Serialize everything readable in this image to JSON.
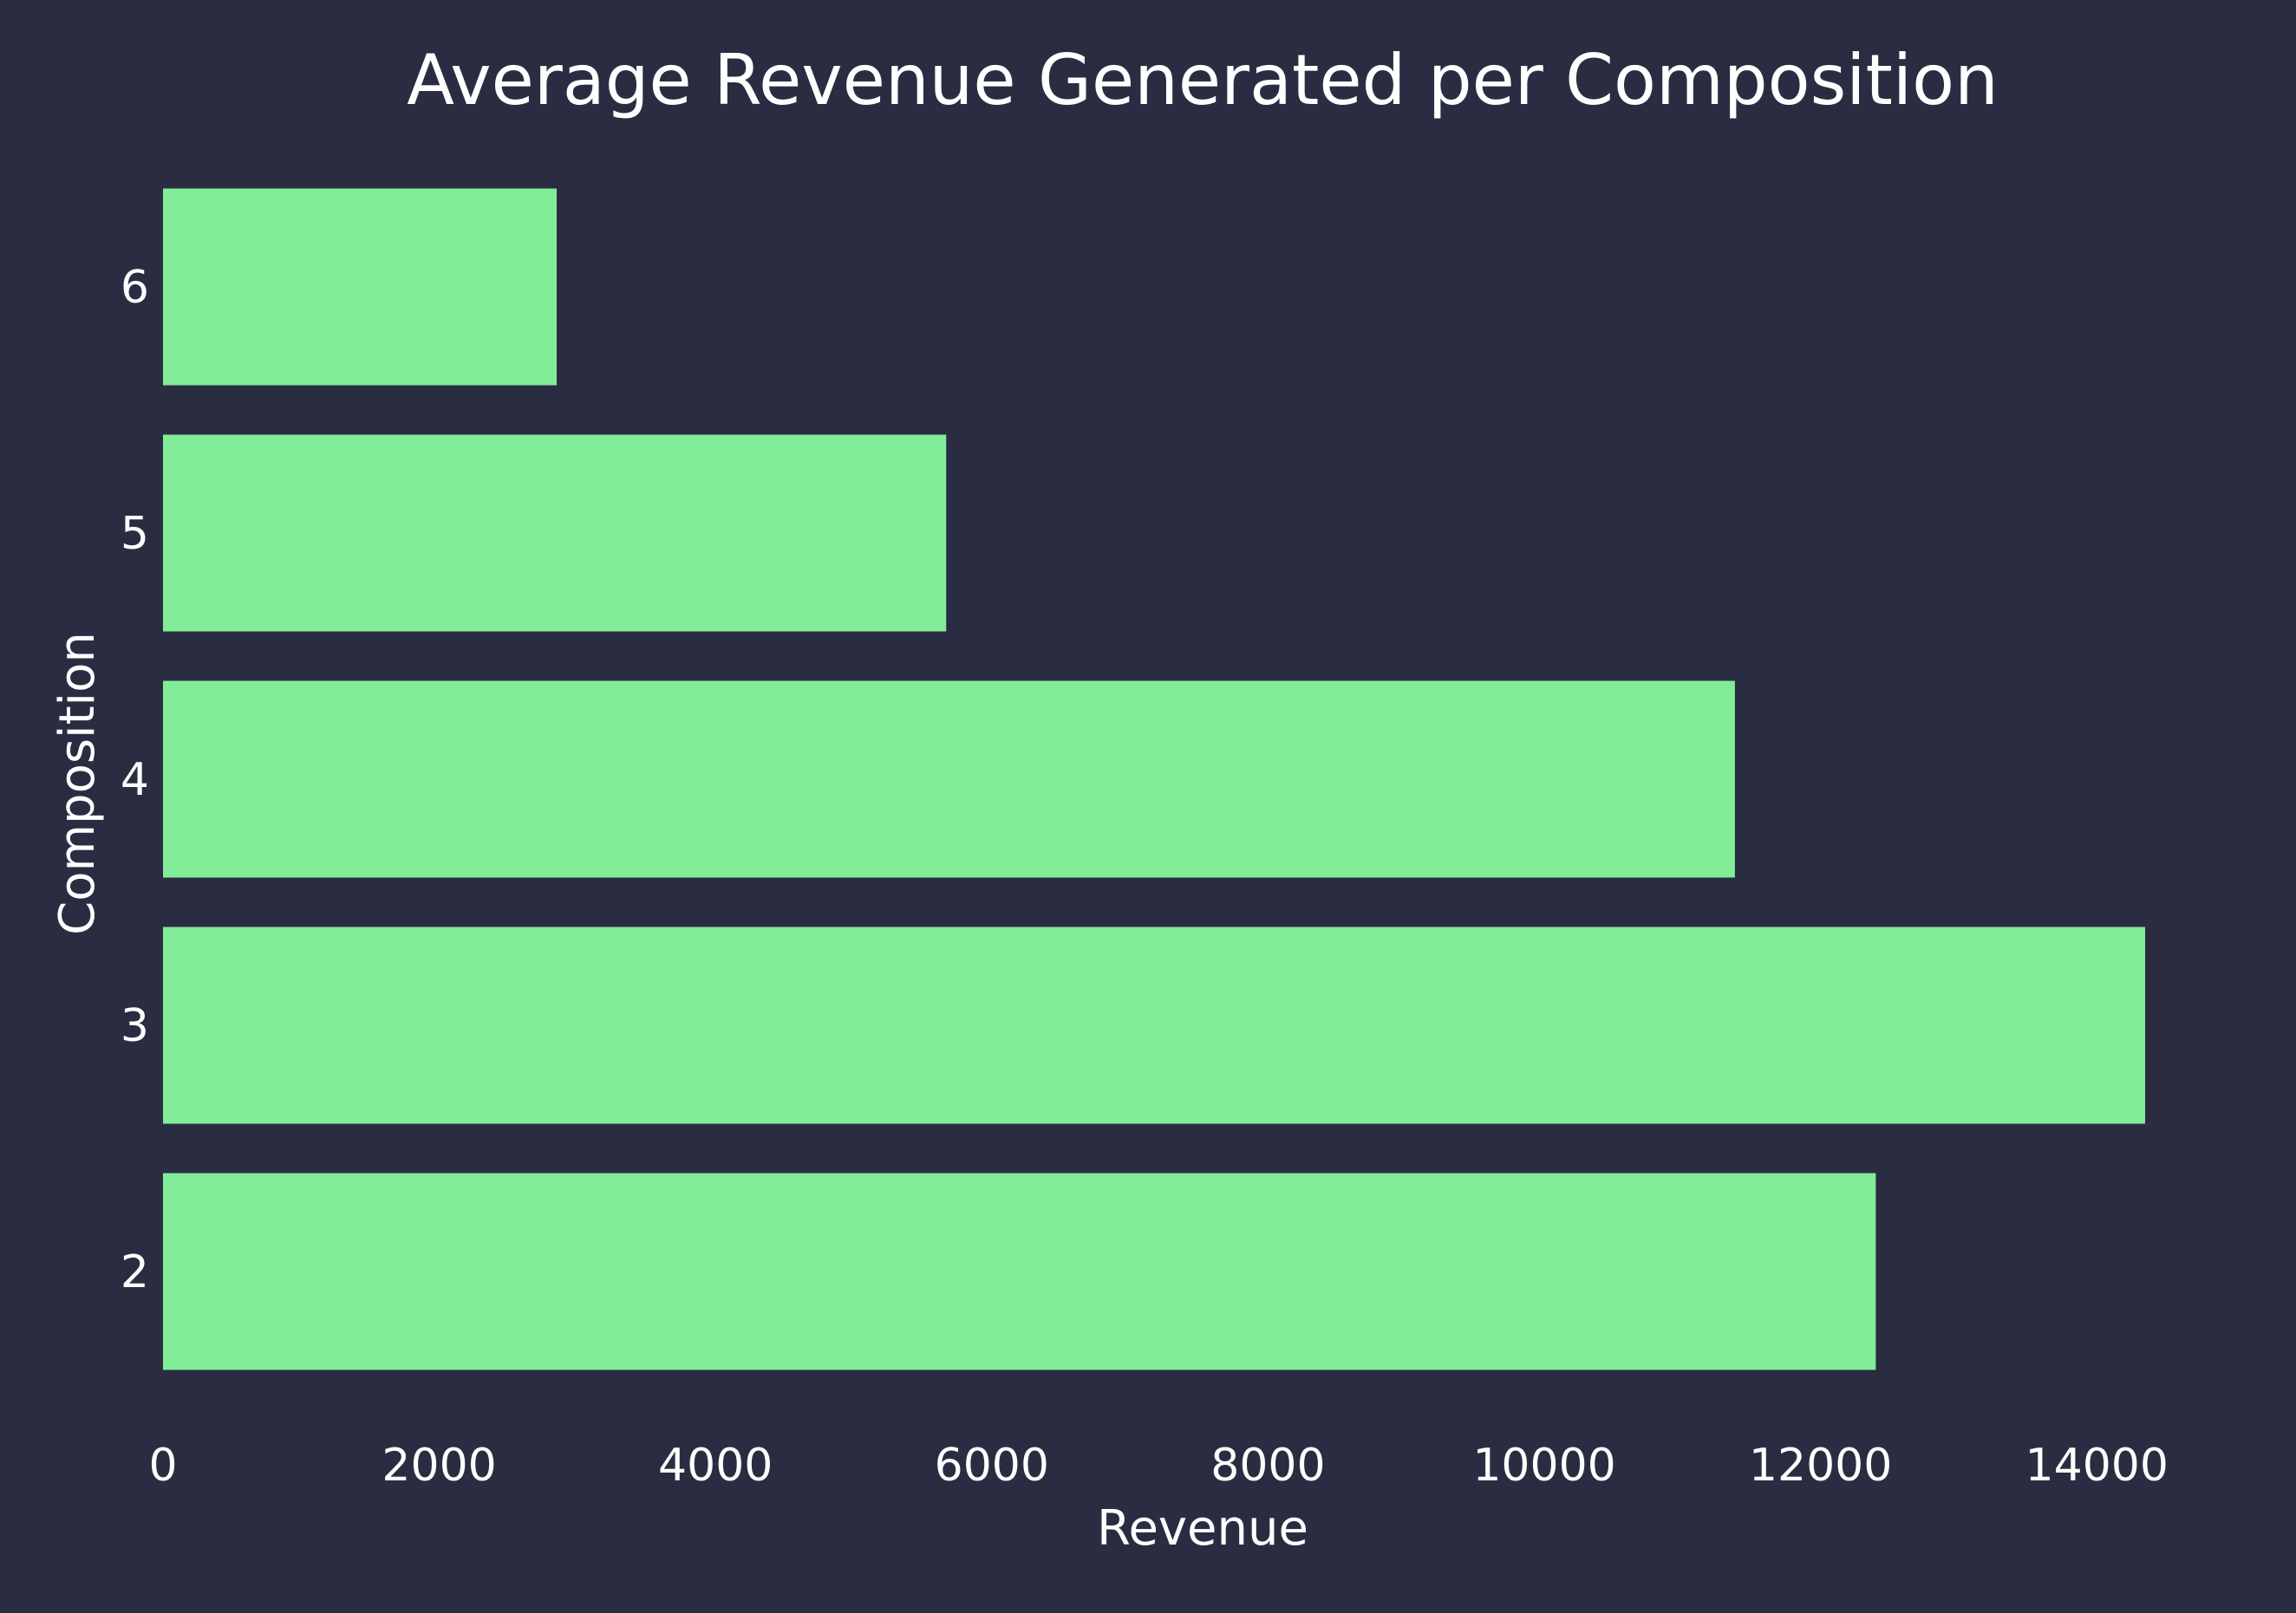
{
  "colors": {
    "background": "#2a2d42",
    "bar": "#82ed98",
    "text": "#ffffff"
  },
  "chart_data": {
    "type": "bar",
    "orientation": "horizontal",
    "title": "Average Revenue Generated per Composition",
    "xlabel": "Revenue",
    "ylabel": "Composition",
    "categories": [
      "2",
      "3",
      "4",
      "5",
      "6"
    ],
    "values": [
      12400,
      14350,
      11380,
      5670,
      2850
    ],
    "xlim": [
      0,
      14350
    ],
    "xticks": [
      "0",
      "2000",
      "4000",
      "6000",
      "8000",
      "10000",
      "12000",
      "14000"
    ],
    "grid": false,
    "legend": "none"
  }
}
